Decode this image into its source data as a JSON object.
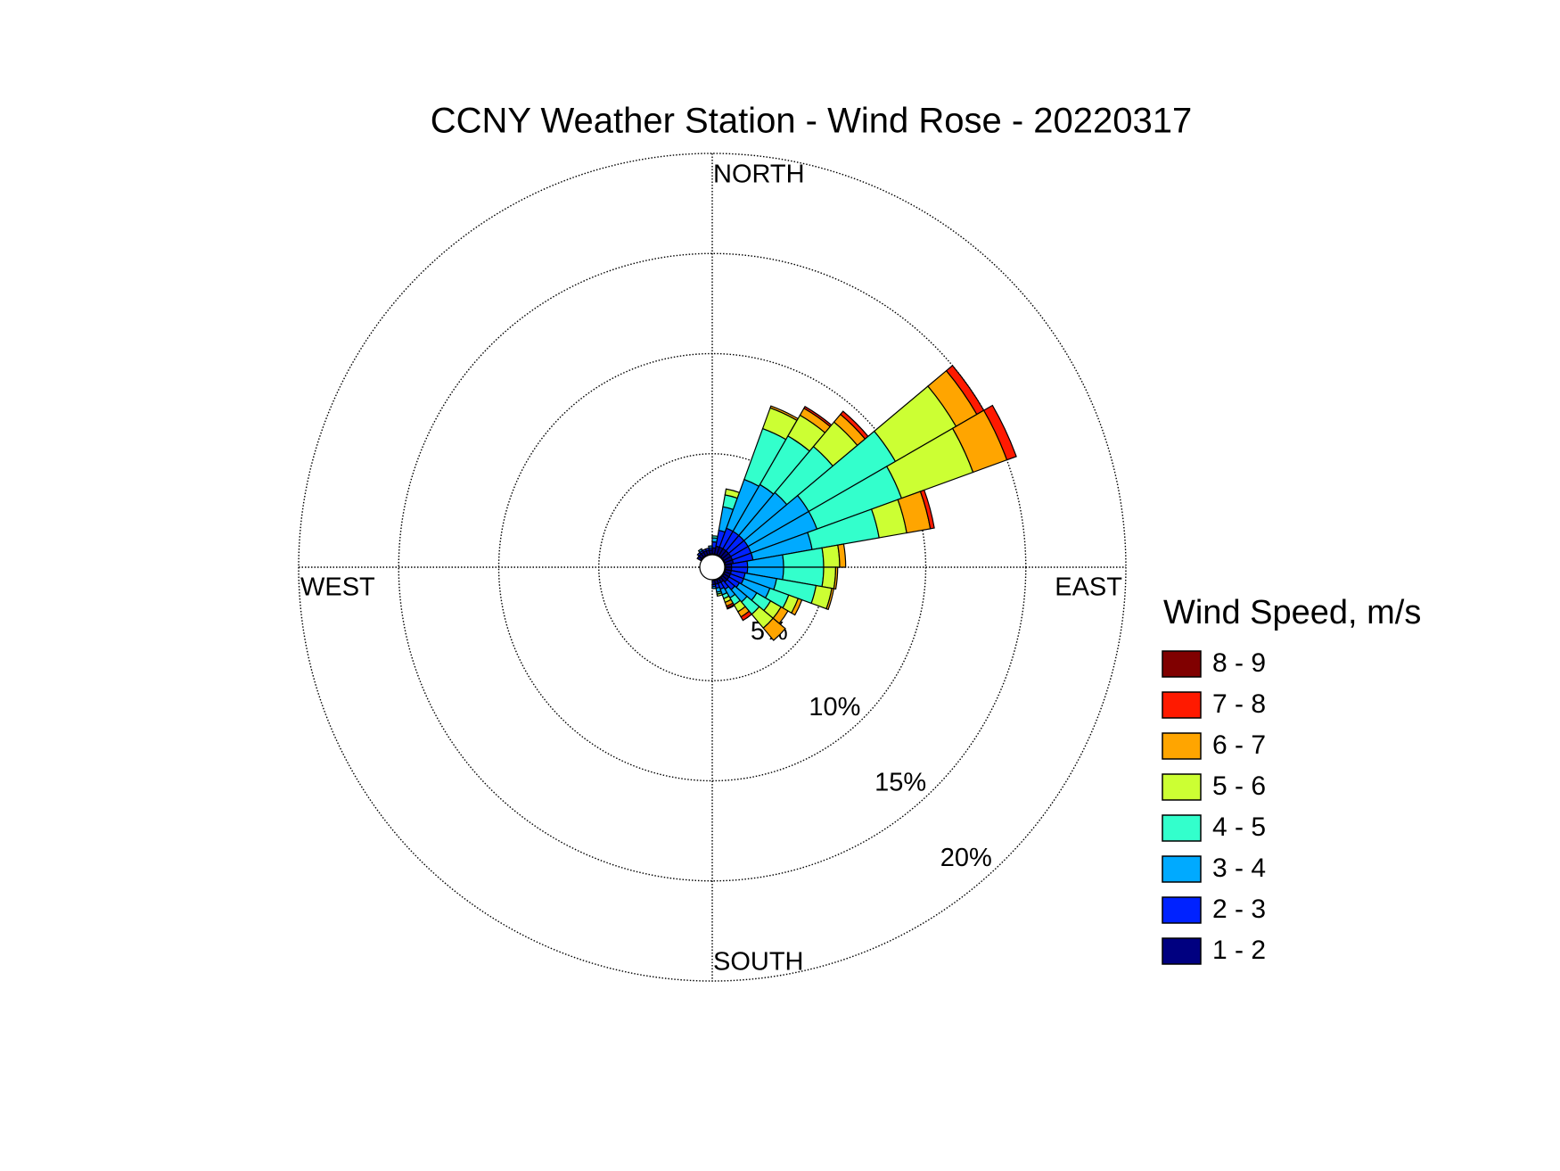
{
  "chart_data": {
    "type": "windrose",
    "title": "CCNY Weather Station - Wind Rose - 20220317",
    "direction_labels": [
      "NORTH",
      "EAST",
      "SOUTH",
      "WEST"
    ],
    "legend_title": "Wind Speed, m/s",
    "x": [
      5,
      15,
      25,
      35,
      45,
      55,
      65,
      75,
      85,
      95,
      105,
      115,
      125,
      135,
      145,
      155,
      165,
      175,
      185,
      195,
      205,
      215,
      225,
      235,
      245,
      255,
      265,
      275,
      285,
      295,
      305,
      315,
      325,
      335,
      345,
      355
    ],
    "xlim": [
      0,
      360
    ],
    "ylim": [
      0,
      20
    ],
    "yticks": [
      {
        "value": 5,
        "label": "5%"
      },
      {
        "value": 10,
        "label": "10%"
      },
      {
        "value": 15,
        "label": "15%"
      },
      {
        "value": 20,
        "label": "20%"
      }
    ],
    "grid": true,
    "series": [
      {
        "name": "1 - 2",
        "color": "#000080",
        "values": [
          0.3,
          0.4,
          0.4,
          0.4,
          0.4,
          0.4,
          0.4,
          0.4,
          0.3,
          0.3,
          0.3,
          0.3,
          0.3,
          0.3,
          0.2,
          0.2,
          0.2,
          0.2,
          0,
          0,
          0,
          0,
          0,
          0,
          0,
          0,
          0,
          0,
          0,
          0,
          0.2,
          0.2,
          0.2,
          0.2,
          0.2,
          0.2
        ]
      },
      {
        "name": "2 - 3",
        "color": "#0022ff",
        "values": [
          0.3,
          0.8,
          1.0,
          1.0,
          1.0,
          1.0,
          1.0,
          1.0,
          0.8,
          0.8,
          0.7,
          0.7,
          0.6,
          0.5,
          0.4,
          0.3,
          0.2,
          0.1,
          0,
          0,
          0,
          0,
          0,
          0,
          0,
          0,
          0,
          0,
          0,
          0,
          0,
          0.1,
          0.1,
          0.1,
          0.1,
          0.1
        ]
      },
      {
        "name": "3 - 4",
        "color": "#00aaff",
        "values": [
          0.2,
          1.2,
          2.6,
          2.7,
          2.8,
          3.5,
          3.5,
          3.0,
          1.8,
          1.8,
          1.6,
          1.4,
          1.0,
          0.8,
          0.5,
          0.3,
          0.2,
          0.1,
          0,
          0,
          0,
          0,
          0,
          0,
          0,
          0,
          0,
          0,
          0,
          0,
          0,
          0,
          0.1,
          0,
          0,
          0.1
        ]
      },
      {
        "name": "4 - 5",
        "color": "#33ffcc",
        "values": [
          0.1,
          0.6,
          2.7,
          2.8,
          3.0,
          5.0,
          4.5,
          3.4,
          2.0,
          2.0,
          2.0,
          1.0,
          0.8,
          0.8,
          0.4,
          0.2,
          0.1,
          0,
          0,
          0,
          0,
          0,
          0,
          0,
          0,
          0,
          0,
          0,
          0,
          0,
          0,
          0,
          0,
          0,
          0,
          0
        ]
      },
      {
        "name": "5 - 6",
        "color": "#ccff33",
        "values": [
          0,
          0.3,
          1.1,
          1.2,
          1.6,
          3.5,
          3.8,
          1.4,
          0.8,
          0.6,
          0.8,
          0.5,
          0.6,
          0.9,
          0.4,
          0.2,
          0.1,
          0,
          0,
          0,
          0,
          0,
          0,
          0,
          0,
          0,
          0,
          0,
          0,
          0,
          0,
          0,
          0,
          0,
          0,
          0
        ]
      },
      {
        "name": "6 - 7",
        "color": "#ffa500",
        "values": [
          0,
          0,
          0.1,
          0.4,
          0.5,
          1.2,
          1.8,
          1.2,
          0.3,
          0.1,
          0.1,
          0.2,
          0.4,
          0.8,
          0.3,
          0.2,
          0,
          0,
          0,
          0,
          0,
          0,
          0,
          0,
          0,
          0,
          0,
          0,
          0,
          0,
          0,
          0,
          0,
          0,
          0,
          0
        ]
      },
      {
        "name": "7 - 8",
        "color": "#ff1a00",
        "values": [
          0,
          0,
          0,
          0.1,
          0.2,
          0.4,
          0.5,
          0.2,
          0,
          0,
          0,
          0,
          0,
          0,
          0.2,
          0.1,
          0,
          0,
          0,
          0,
          0,
          0,
          0,
          0,
          0,
          0,
          0,
          0,
          0,
          0,
          0,
          0,
          0,
          0,
          0,
          0
        ]
      },
      {
        "name": "8 - 9",
        "color": "#800000",
        "values": [
          0,
          0,
          0,
          0,
          0,
          0,
          0,
          0,
          0,
          0,
          0,
          0,
          0,
          0,
          0,
          0.05,
          0,
          0,
          0,
          0,
          0,
          0,
          0,
          0,
          0,
          0,
          0,
          0,
          0,
          0,
          0,
          0,
          0,
          0,
          0,
          0
        ]
      }
    ]
  }
}
